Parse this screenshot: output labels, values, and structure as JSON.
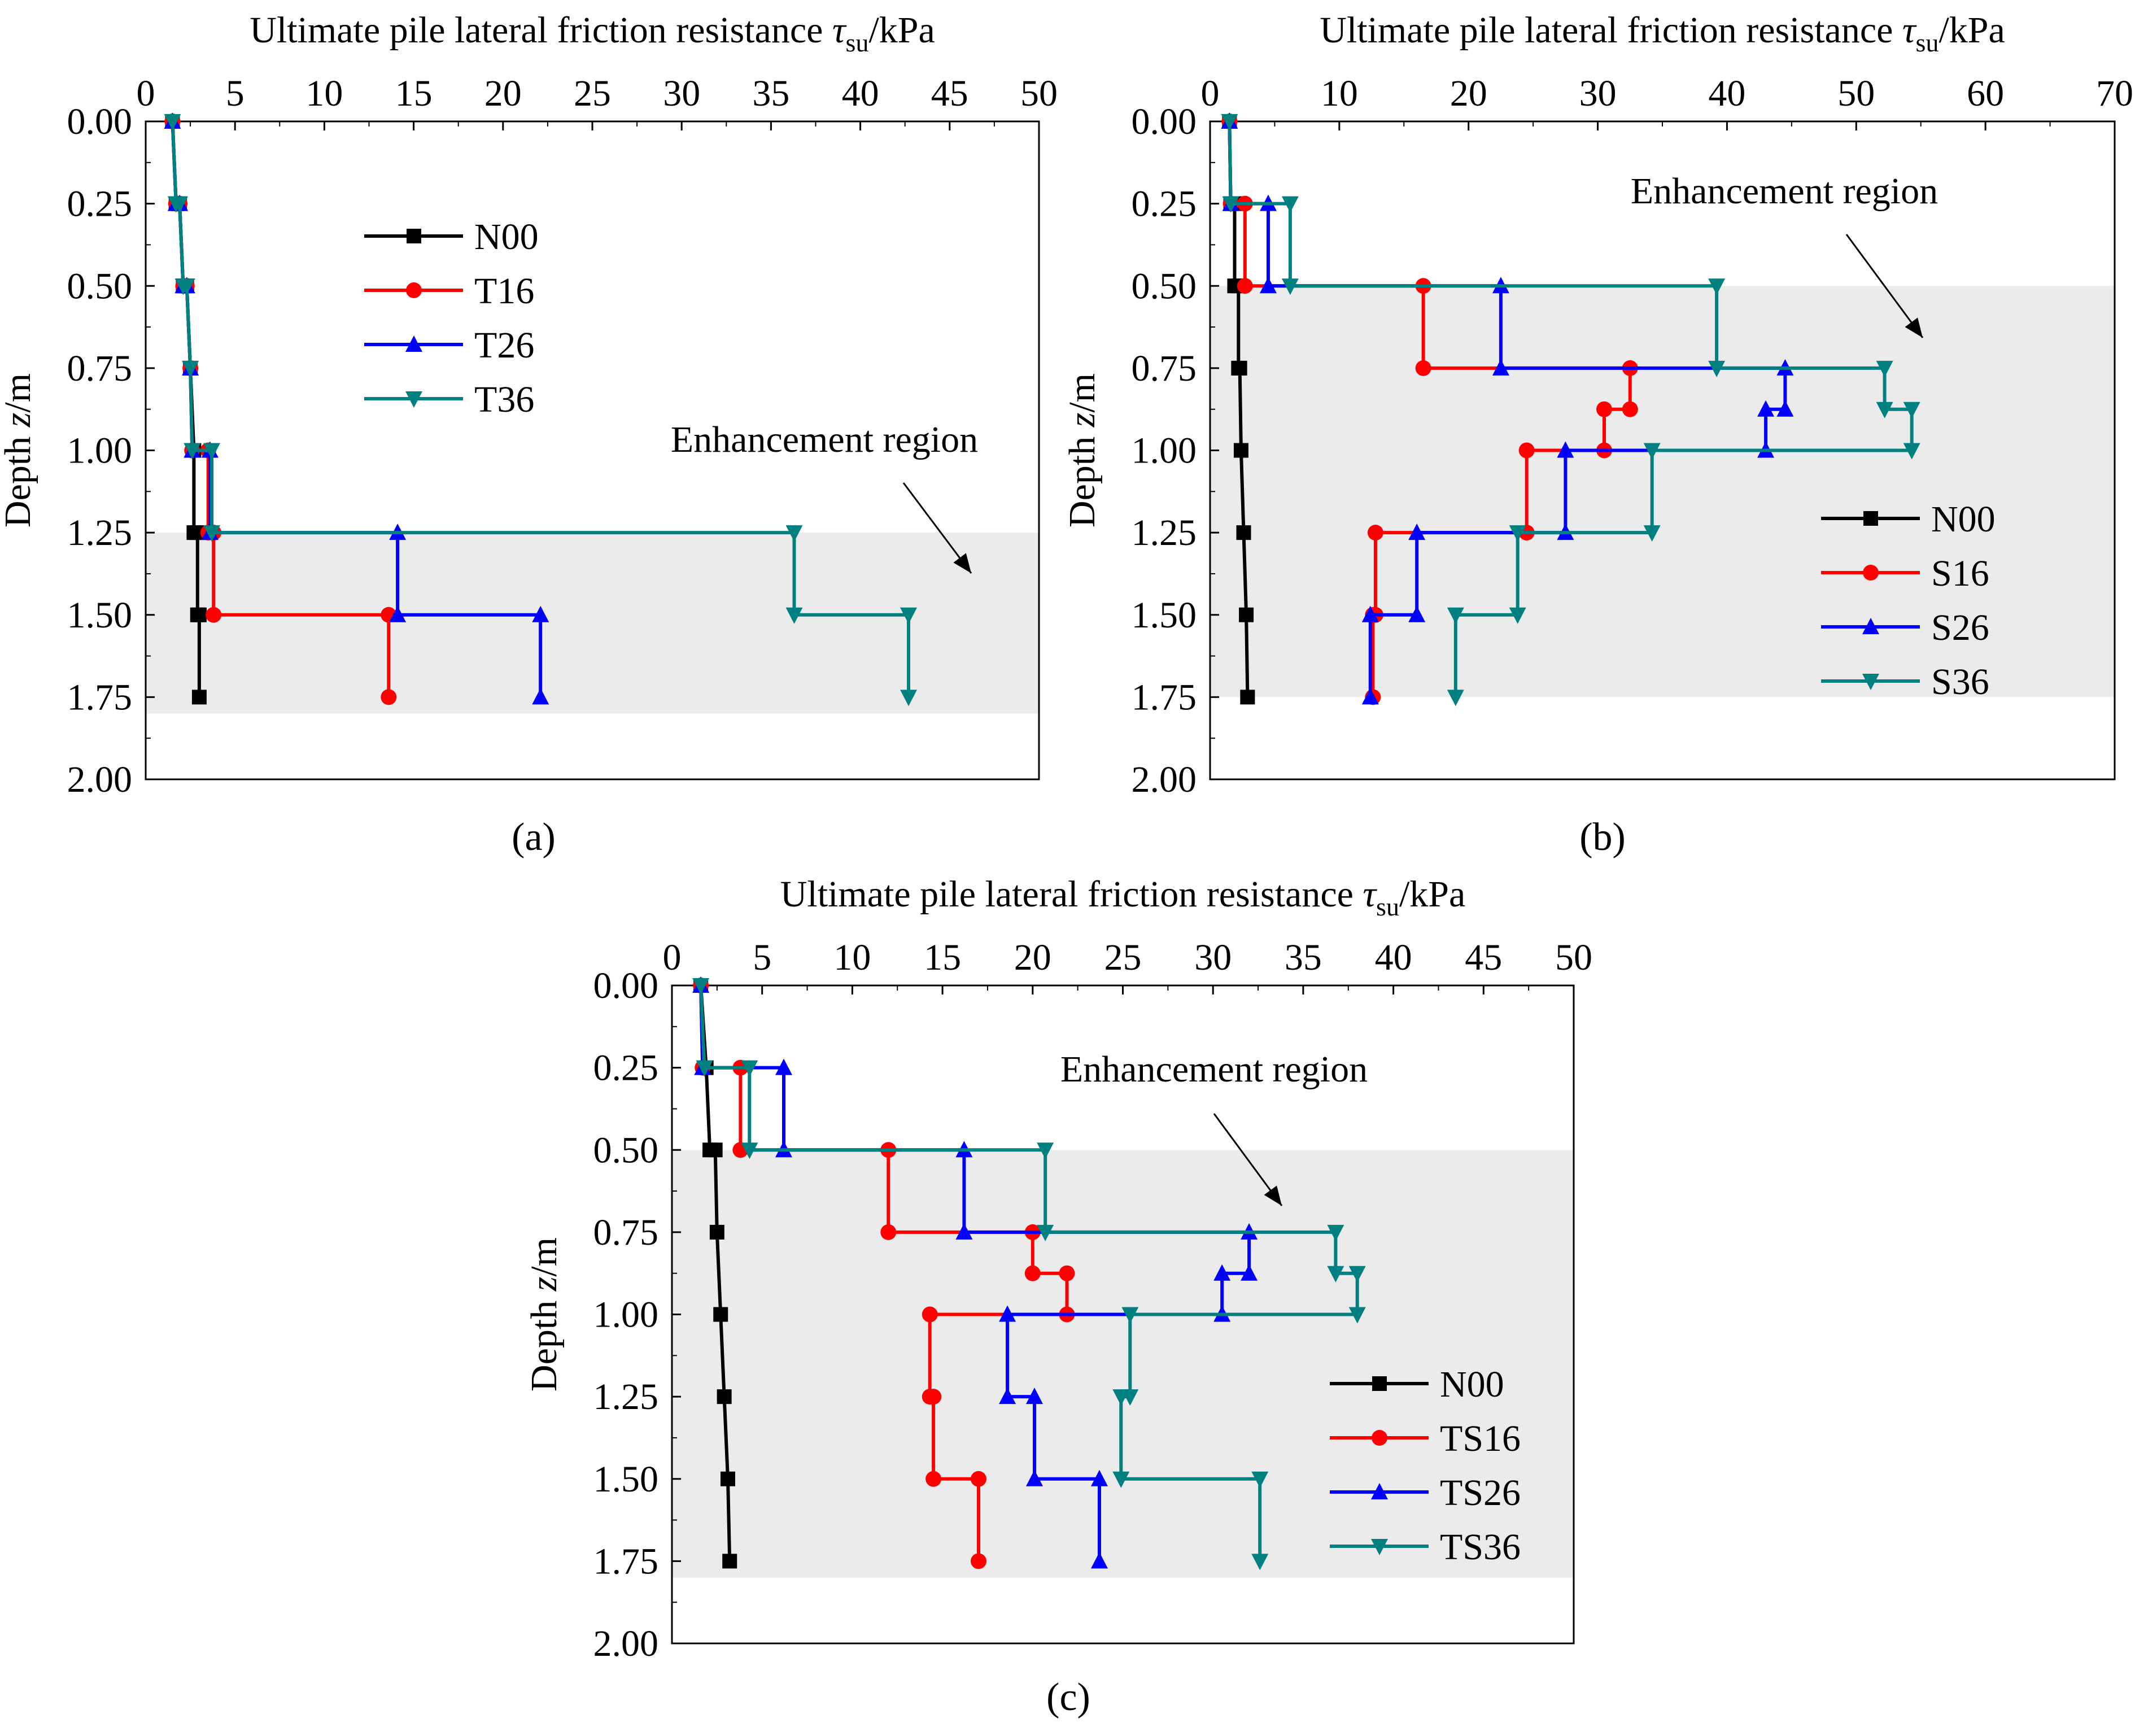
{
  "chart_data": [
    {
      "type": "line",
      "panel_label": "(a)",
      "panel_letter": "a",
      "title": "",
      "xlabel": "Ultimate pile lateral friction resistance",
      "xlabel_symbol": "τ",
      "xlabel_subscript": "su",
      "xlabel_unit": "/kPa",
      "ylabel_prefix": "Depth ",
      "ylabel_symbol": "z",
      "ylabel_unit": "/m",
      "xlim": [
        0,
        50
      ],
      "ylim": [
        0,
        2.0
      ],
      "y_inverted": true,
      "x_ticks": [
        0,
        5,
        10,
        15,
        20,
        25,
        30,
        35,
        40,
        45,
        50
      ],
      "y_ticks": [
        "0.00",
        "0.25",
        "0.50",
        "0.75",
        "1.00",
        "1.25",
        "1.50",
        "1.75",
        "2.00"
      ],
      "region": {
        "label": "Enhancement region",
        "depth_from": 1.25,
        "depth_to": 1.8
      },
      "legend_position": "upper-middle",
      "series": [
        {
          "name": "N00",
          "color": "#000000",
          "marker": "square",
          "points": [
            [
              1.5,
              0
            ],
            [
              1.7,
              0.25
            ],
            [
              1.9,
              0.25
            ],
            [
              2.1,
              0.5
            ],
            [
              2.3,
              0.5
            ],
            [
              2.5,
              0.75
            ],
            [
              2.7,
              1.0
            ],
            [
              2.7,
              1.25
            ],
            [
              2.9,
              1.25
            ],
            [
              2.9,
              1.5
            ],
            [
              3.0,
              1.5
            ],
            [
              3.0,
              1.75
            ]
          ]
        },
        {
          "name": "T16",
          "color": "#ff0000",
          "marker": "circle",
          "points": [
            [
              1.5,
              0
            ],
            [
              1.7,
              0.25
            ],
            [
              1.9,
              0.25
            ],
            [
              2.1,
              0.5
            ],
            [
              2.3,
              0.5
            ],
            [
              2.5,
              0.75
            ],
            [
              2.6,
              1.0
            ],
            [
              3.5,
              1.0
            ],
            [
              3.5,
              1.25
            ],
            [
              3.8,
              1.25
            ],
            [
              3.8,
              1.5
            ],
            [
              13.6,
              1.5
            ],
            [
              13.6,
              1.75
            ]
          ]
        },
        {
          "name": "T26",
          "color": "#0000ff",
          "marker": "triangle-up",
          "points": [
            [
              1.5,
              0
            ],
            [
              1.7,
              0.25
            ],
            [
              1.9,
              0.25
            ],
            [
              2.1,
              0.5
            ],
            [
              2.3,
              0.5
            ],
            [
              2.5,
              0.75
            ],
            [
              2.6,
              1.0
            ],
            [
              3.6,
              1.0
            ],
            [
              3.6,
              1.25
            ],
            [
              14.1,
              1.25
            ],
            [
              14.1,
              1.5
            ],
            [
              22.1,
              1.5
            ],
            [
              22.1,
              1.75
            ]
          ]
        },
        {
          "name": "T36",
          "color": "#008080",
          "marker": "triangle-down",
          "points": [
            [
              1.5,
              0
            ],
            [
              1.7,
              0.25
            ],
            [
              1.9,
              0.25
            ],
            [
              2.1,
              0.5
            ],
            [
              2.3,
              0.5
            ],
            [
              2.5,
              0.75
            ],
            [
              2.6,
              1.0
            ],
            [
              3.7,
              1.0
            ],
            [
              3.7,
              1.25
            ],
            [
              36.3,
              1.25
            ],
            [
              36.3,
              1.5
            ],
            [
              42.7,
              1.5
            ],
            [
              42.7,
              1.75
            ]
          ]
        }
      ]
    },
    {
      "type": "line",
      "panel_label": "(b)",
      "panel_letter": "b",
      "title": "",
      "xlabel": "Ultimate pile lateral friction resistance",
      "xlabel_symbol": "τ",
      "xlabel_subscript": "su",
      "xlabel_unit": "/kPa",
      "ylabel_prefix": "Depth ",
      "ylabel_symbol": "z",
      "ylabel_unit": "/m",
      "xlim": [
        0,
        70
      ],
      "ylim": [
        0,
        2.0
      ],
      "y_inverted": true,
      "x_ticks": [
        0,
        10,
        20,
        30,
        40,
        50,
        60,
        70
      ],
      "y_ticks": [
        "0.00",
        "0.25",
        "0.50",
        "0.75",
        "1.00",
        "1.25",
        "1.50",
        "1.75",
        "2.00"
      ],
      "region": {
        "label": "Enhancement region",
        "depth_from": 0.5,
        "depth_to": 1.75
      },
      "legend_position": "lower-right",
      "series": [
        {
          "name": "N00",
          "color": "#000000",
          "marker": "square",
          "points": [
            [
              1.5,
              0
            ],
            [
              1.6,
              0.25
            ],
            [
              1.9,
              0.25
            ],
            [
              1.9,
              0.5
            ],
            [
              2.2,
              0.5
            ],
            [
              2.2,
              0.75
            ],
            [
              2.3,
              0.75
            ],
            [
              2.4,
              1.0
            ],
            [
              2.6,
              1.25
            ],
            [
              2.8,
              1.5
            ],
            [
              2.9,
              1.75
            ]
          ]
        },
        {
          "name": "S16",
          "color": "#ff0000",
          "marker": "circle",
          "points": [
            [
              1.5,
              0
            ],
            [
              1.6,
              0.25
            ],
            [
              2.7,
              0.25
            ],
            [
              2.7,
              0.5
            ],
            [
              16.5,
              0.5
            ],
            [
              16.5,
              0.75
            ],
            [
              32.5,
              0.75
            ],
            [
              32.5,
              0.875
            ],
            [
              30.5,
              0.875
            ],
            [
              30.5,
              1.0
            ],
            [
              24.5,
              1.0
            ],
            [
              24.5,
              1.25
            ],
            [
              12.8,
              1.25
            ],
            [
              12.8,
              1.5
            ],
            [
              12.6,
              1.5
            ],
            [
              12.6,
              1.75
            ]
          ]
        },
        {
          "name": "S26",
          "color": "#0000ff",
          "marker": "triangle-up",
          "points": [
            [
              1.5,
              0
            ],
            [
              1.6,
              0.25
            ],
            [
              4.5,
              0.25
            ],
            [
              4.5,
              0.5
            ],
            [
              22.5,
              0.5
            ],
            [
              22.5,
              0.75
            ],
            [
              44.5,
              0.75
            ],
            [
              44.5,
              0.875
            ],
            [
              43.0,
              0.875
            ],
            [
              43.0,
              1.0
            ],
            [
              27.5,
              1.0
            ],
            [
              27.5,
              1.25
            ],
            [
              16.0,
              1.25
            ],
            [
              16.0,
              1.5
            ],
            [
              12.4,
              1.5
            ],
            [
              12.4,
              1.75
            ]
          ]
        },
        {
          "name": "S36",
          "color": "#008080",
          "marker": "triangle-down",
          "points": [
            [
              1.5,
              0
            ],
            [
              1.6,
              0.25
            ],
            [
              6.2,
              0.25
            ],
            [
              6.2,
              0.5
            ],
            [
              39.2,
              0.5
            ],
            [
              39.2,
              0.75
            ],
            [
              52.2,
              0.75
            ],
            [
              52.2,
              0.875
            ],
            [
              54.3,
              0.875
            ],
            [
              54.3,
              1.0
            ],
            [
              34.2,
              1.0
            ],
            [
              34.2,
              1.25
            ],
            [
              23.8,
              1.25
            ],
            [
              23.8,
              1.5
            ],
            [
              19.0,
              1.5
            ],
            [
              19.0,
              1.75
            ]
          ]
        }
      ]
    },
    {
      "type": "line",
      "panel_label": "(c)",
      "panel_letter": "c",
      "title": "",
      "xlabel": "Ultimate pile lateral friction resistance",
      "xlabel_symbol": "τ",
      "xlabel_subscript": "su",
      "xlabel_unit": "/kPa",
      "ylabel_prefix": "Depth ",
      "ylabel_symbol": "z",
      "ylabel_unit": "/m",
      "xlim": [
        0,
        50
      ],
      "ylim": [
        0,
        2.0
      ],
      "y_inverted": true,
      "x_ticks": [
        0,
        5,
        10,
        15,
        20,
        25,
        30,
        35,
        40,
        45,
        50
      ],
      "y_ticks": [
        "0.00",
        "0.25",
        "0.50",
        "0.75",
        "1.00",
        "1.25",
        "1.50",
        "1.75",
        "2.00"
      ],
      "region": {
        "label": "Enhancement region",
        "depth_from": 0.5,
        "depth_to": 1.8
      },
      "legend_position": "lower-right",
      "series": [
        {
          "name": "N00",
          "color": "#000000",
          "marker": "square",
          "points": [
            [
              1.6,
              0
            ],
            [
              1.9,
              0.25
            ],
            [
              2.1,
              0.5
            ],
            [
              2.4,
              0.5
            ],
            [
              2.5,
              0.75
            ],
            [
              2.7,
              1.0
            ],
            [
              2.9,
              1.25
            ],
            [
              3.1,
              1.5
            ],
            [
              3.2,
              1.75
            ]
          ]
        },
        {
          "name": "TS16",
          "color": "#ff0000",
          "marker": "circle",
          "points": [
            [
              1.6,
              0
            ],
            [
              1.7,
              0.25
            ],
            [
              3.8,
              0.25
            ],
            [
              3.8,
              0.5
            ],
            [
              12.0,
              0.5
            ],
            [
              12.0,
              0.75
            ],
            [
              20.0,
              0.75
            ],
            [
              20.0,
              0.875
            ],
            [
              21.9,
              0.875
            ],
            [
              21.9,
              1.0
            ],
            [
              14.3,
              1.0
            ],
            [
              14.3,
              1.25
            ],
            [
              14.5,
              1.25
            ],
            [
              14.5,
              1.5
            ],
            [
              17.0,
              1.5
            ],
            [
              17.0,
              1.75
            ]
          ]
        },
        {
          "name": "TS26",
          "color": "#0000ff",
          "marker": "triangle-up",
          "points": [
            [
              1.6,
              0
            ],
            [
              1.7,
              0.25
            ],
            [
              6.2,
              0.25
            ],
            [
              6.2,
              0.5
            ],
            [
              16.2,
              0.5
            ],
            [
              16.2,
              0.75
            ],
            [
              32.0,
              0.75
            ],
            [
              32.0,
              0.875
            ],
            [
              30.5,
              0.875
            ],
            [
              30.5,
              1.0
            ],
            [
              18.6,
              1.0
            ],
            [
              18.6,
              1.25
            ],
            [
              20.1,
              1.25
            ],
            [
              20.1,
              1.5
            ],
            [
              23.7,
              1.5
            ],
            [
              23.7,
              1.75
            ]
          ]
        },
        {
          "name": "TS36",
          "color": "#008080",
          "marker": "triangle-down",
          "points": [
            [
              1.6,
              0
            ],
            [
              1.8,
              0.25
            ],
            [
              4.3,
              0.25
            ],
            [
              4.3,
              0.5
            ],
            [
              20.7,
              0.5
            ],
            [
              20.7,
              0.75
            ],
            [
              36.8,
              0.75
            ],
            [
              36.8,
              0.875
            ],
            [
              38.0,
              0.875
            ],
            [
              38.0,
              1.0
            ],
            [
              25.4,
              1.0
            ],
            [
              25.4,
              1.25
            ],
            [
              24.9,
              1.25
            ],
            [
              24.9,
              1.5
            ],
            [
              32.6,
              1.5
            ],
            [
              32.6,
              1.75
            ]
          ]
        }
      ]
    }
  ]
}
